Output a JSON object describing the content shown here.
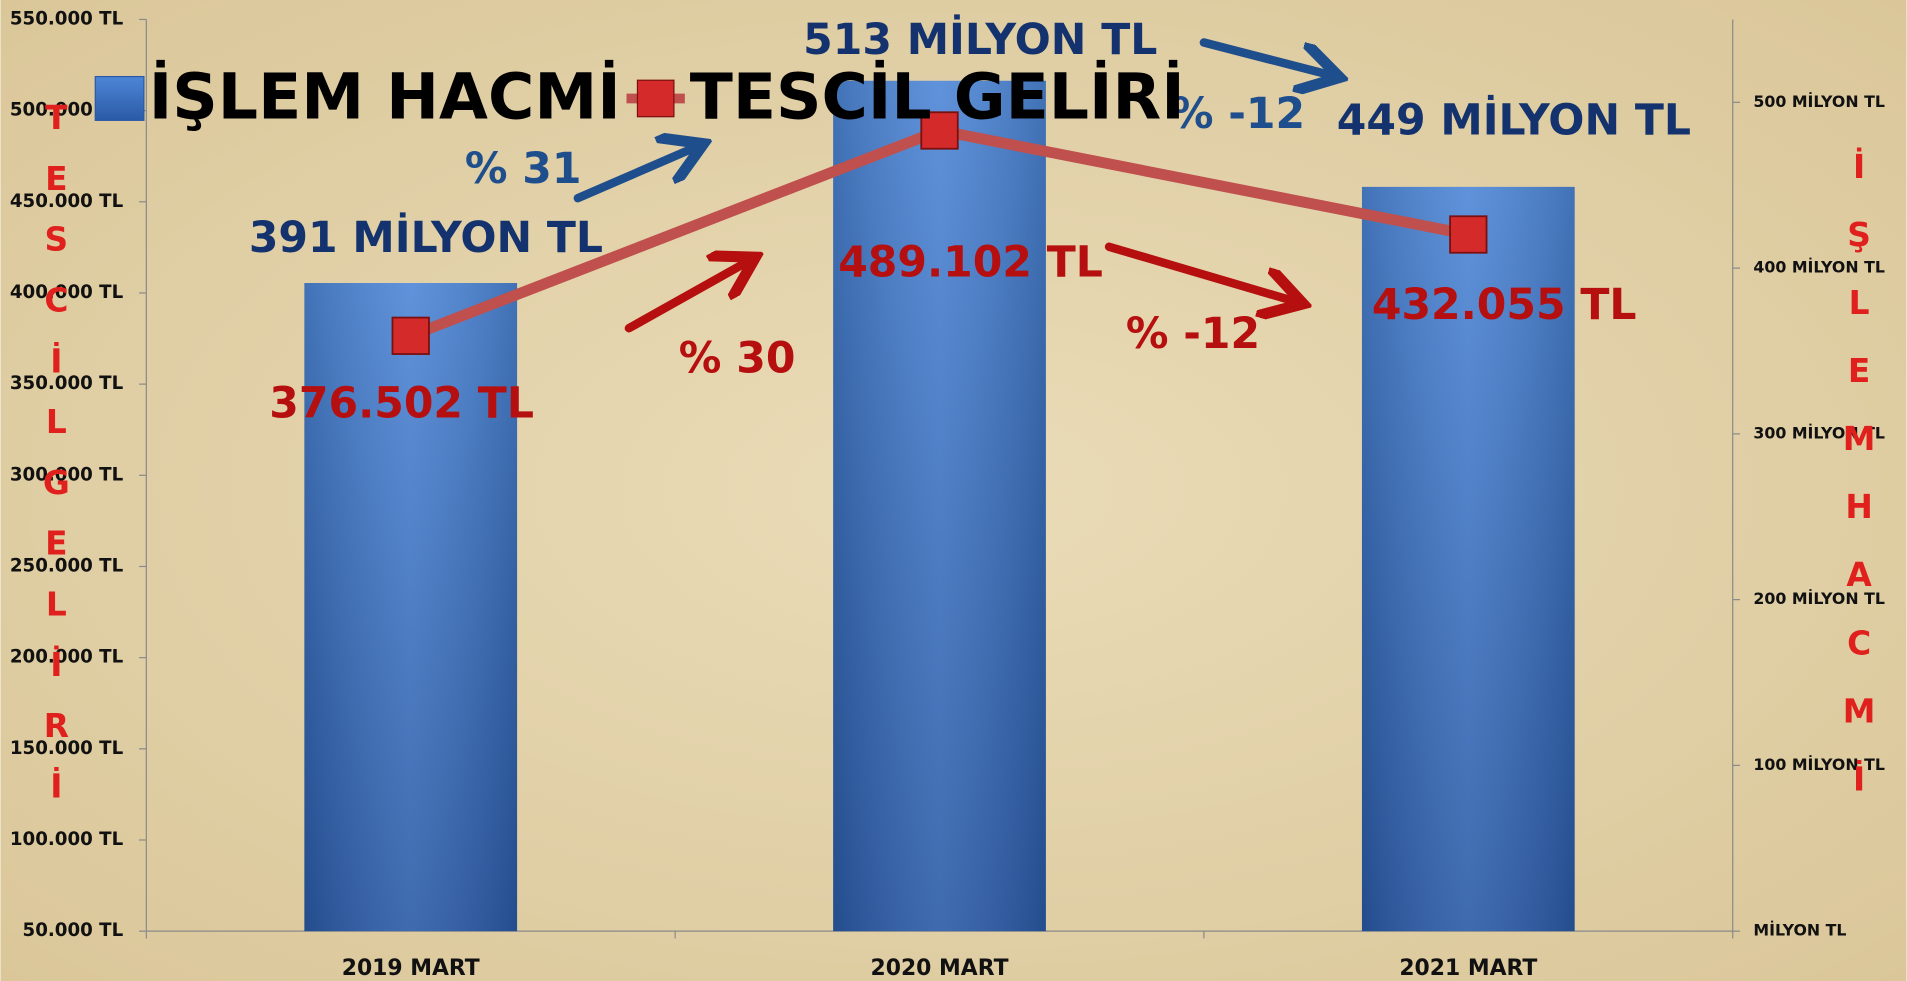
{
  "chart_data": {
    "type": "bar_line",
    "categories": [
      "2019 MART",
      "2020 MART",
      "2021 MART"
    ],
    "series": [
      {
        "name": "İŞLEM HACMİ",
        "type": "bar",
        "axis": "y2",
        "color": "#3a6fc4",
        "values": [
          391,
          513,
          449
        ],
        "value_labels": [
          "391 MİLYON TL",
          "513 MİLYON TL",
          "449 MİLYON TL"
        ],
        "label_color": "#14336e"
      },
      {
        "name": "TESCİL GELİRİ",
        "type": "line",
        "axis": "y",
        "color": "#c0504d",
        "values": [
          376502,
          489102,
          432055
        ],
        "value_labels": [
          "376.502 TL",
          "489.102 TL",
          "432.055 TL"
        ],
        "label_color": "#b50f0f"
      }
    ],
    "ylabel": "TESCİL GELİRİ",
    "y2label": "İŞLEM HACMİ",
    "ylim": [
      50000,
      550000
    ],
    "yticks": [
      {
        "value": 50000,
        "label": "50.000 TL"
      },
      {
        "value": 100000,
        "label": "100.000 TL"
      },
      {
        "value": 150000,
        "label": "150.000 TL"
      },
      {
        "value": 200000,
        "label": "200.000 TL"
      },
      {
        "value": 250000,
        "label": "250.000 TL"
      },
      {
        "value": 300000,
        "label": "300.000 TL"
      },
      {
        "value": 350000,
        "label": "350.000 TL"
      },
      {
        "value": 400000,
        "label": "400.000 TL"
      },
      {
        "value": 450000,
        "label": "450.000 TL"
      },
      {
        "value": 500000,
        "label": "500.000 TL"
      },
      {
        "value": 550000,
        "label": "550.000 TL"
      }
    ],
    "y2lim": [
      0,
      550
    ],
    "y2ticks": [
      {
        "value": 0,
        "label": "MİLYON TL"
      },
      {
        "value": 100,
        "label": "100 MİLYON TL"
      },
      {
        "value": 200,
        "label": "200 MİLYON TL"
      },
      {
        "value": 300,
        "label": "300 MİLYON TL"
      },
      {
        "value": 400,
        "label": "400 MİLYON TL"
      },
      {
        "value": 500,
        "label": "500 MİLYON TL"
      }
    ],
    "annotations": [
      {
        "text": "% 31",
        "color": "#1f4e8c"
      },
      {
        "text": "% -12",
        "color": "#1f4e8c"
      },
      {
        "text": "% 30",
        "color": "#b50f0f"
      },
      {
        "text": "% -12",
        "color": "#b50f0f"
      }
    ],
    "legend": "top-left"
  }
}
